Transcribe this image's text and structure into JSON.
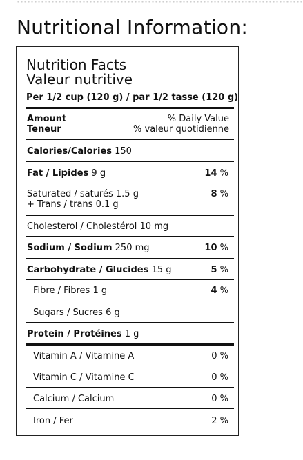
{
  "heading": "Nutritional Information:",
  "label": {
    "title_en": "Nutrition Facts",
    "title_fr": "Valeur nutritive",
    "serving": "Per 1/2 cup (120 g) / par 1/2 tasse (120 g)",
    "amount_en": "Amount",
    "amount_fr": "Teneur",
    "dv_en": "% Daily Value",
    "dv_fr": "% valeur quotidienne",
    "calories_label": "Calories/Calories",
    "calories_value": "150",
    "fat_label": "Fat / Lipides",
    "fat_amount": "9 g",
    "fat_dv": "14",
    "sat_label": "Saturated / saturés 1.5 g",
    "trans_label": "+ Trans / trans 0.1 g",
    "sat_dv": "8",
    "chol_label": "Cholesterol / Cholestérol 10 mg",
    "sodium_label": "Sodium / Sodium",
    "sodium_amount": "250 mg",
    "sodium_dv": "10",
    "carb_label": "Carbohydrate / Glucides",
    "carb_amount": "15 g",
    "carb_dv": "5",
    "fibre_label": "Fibre / Fibres 1 g",
    "fibre_dv": "4",
    "sugars_label": "Sugars / Sucres 6 g",
    "protein_label": "Protein / Protéines",
    "protein_amount": "1 g",
    "vita_label": "Vitamin A / Vitamine A",
    "vita_dv": "0",
    "vitc_label": "Vitamin C / Vitamine C",
    "vitc_dv": "0",
    "calcium_label": "Calcium / Calcium",
    "calcium_dv": "0",
    "iron_label": "Iron / Fer",
    "iron_dv": "2",
    "pct_sign": "%"
  }
}
